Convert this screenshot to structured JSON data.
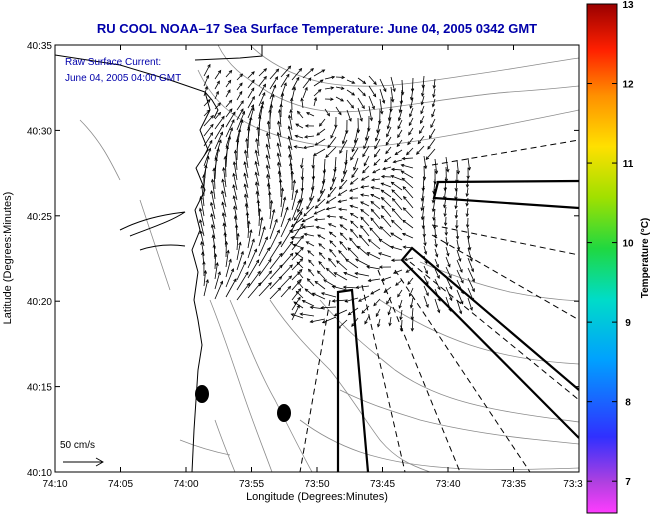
{
  "chart_data": {
    "type": "vector-field-map",
    "title": "RU COOL  NOAA–17  Sea Surface Temperature:  June 04, 2005 0342 GMT",
    "annotation": {
      "line1": "Raw Surface Current:",
      "line2": "June 04, 2005 04:00 GMT"
    },
    "xlabel": "Longitude (Degrees:Minutes)",
    "ylabel": "Latitude (Degrees:Minutes)",
    "x_ticks": [
      "74:10",
      "74:05",
      "74:00",
      "73:55",
      "73:50",
      "73:45",
      "73:40",
      "73:35",
      "73:3"
    ],
    "y_ticks": [
      "40:35",
      "40:30",
      "40:25",
      "40:20",
      "40:15",
      "40:10"
    ],
    "xlim_minutes": [
      4450,
      4410
    ],
    "ylim_minutes": [
      2410,
      2435
    ],
    "scale_label": "50 cm/s",
    "colorbar": {
      "label": "Temperature (°C)",
      "ticks": [
        "13",
        "12",
        "11",
        "10",
        "9",
        "8",
        "7"
      ],
      "range": [
        6.6,
        13
      ]
    },
    "colors": {
      "title": "#0000aa",
      "annotation": "#0000aa",
      "axis": "#000000",
      "coast": "#000000",
      "bathymetry": "#8c8c8c"
    }
  }
}
